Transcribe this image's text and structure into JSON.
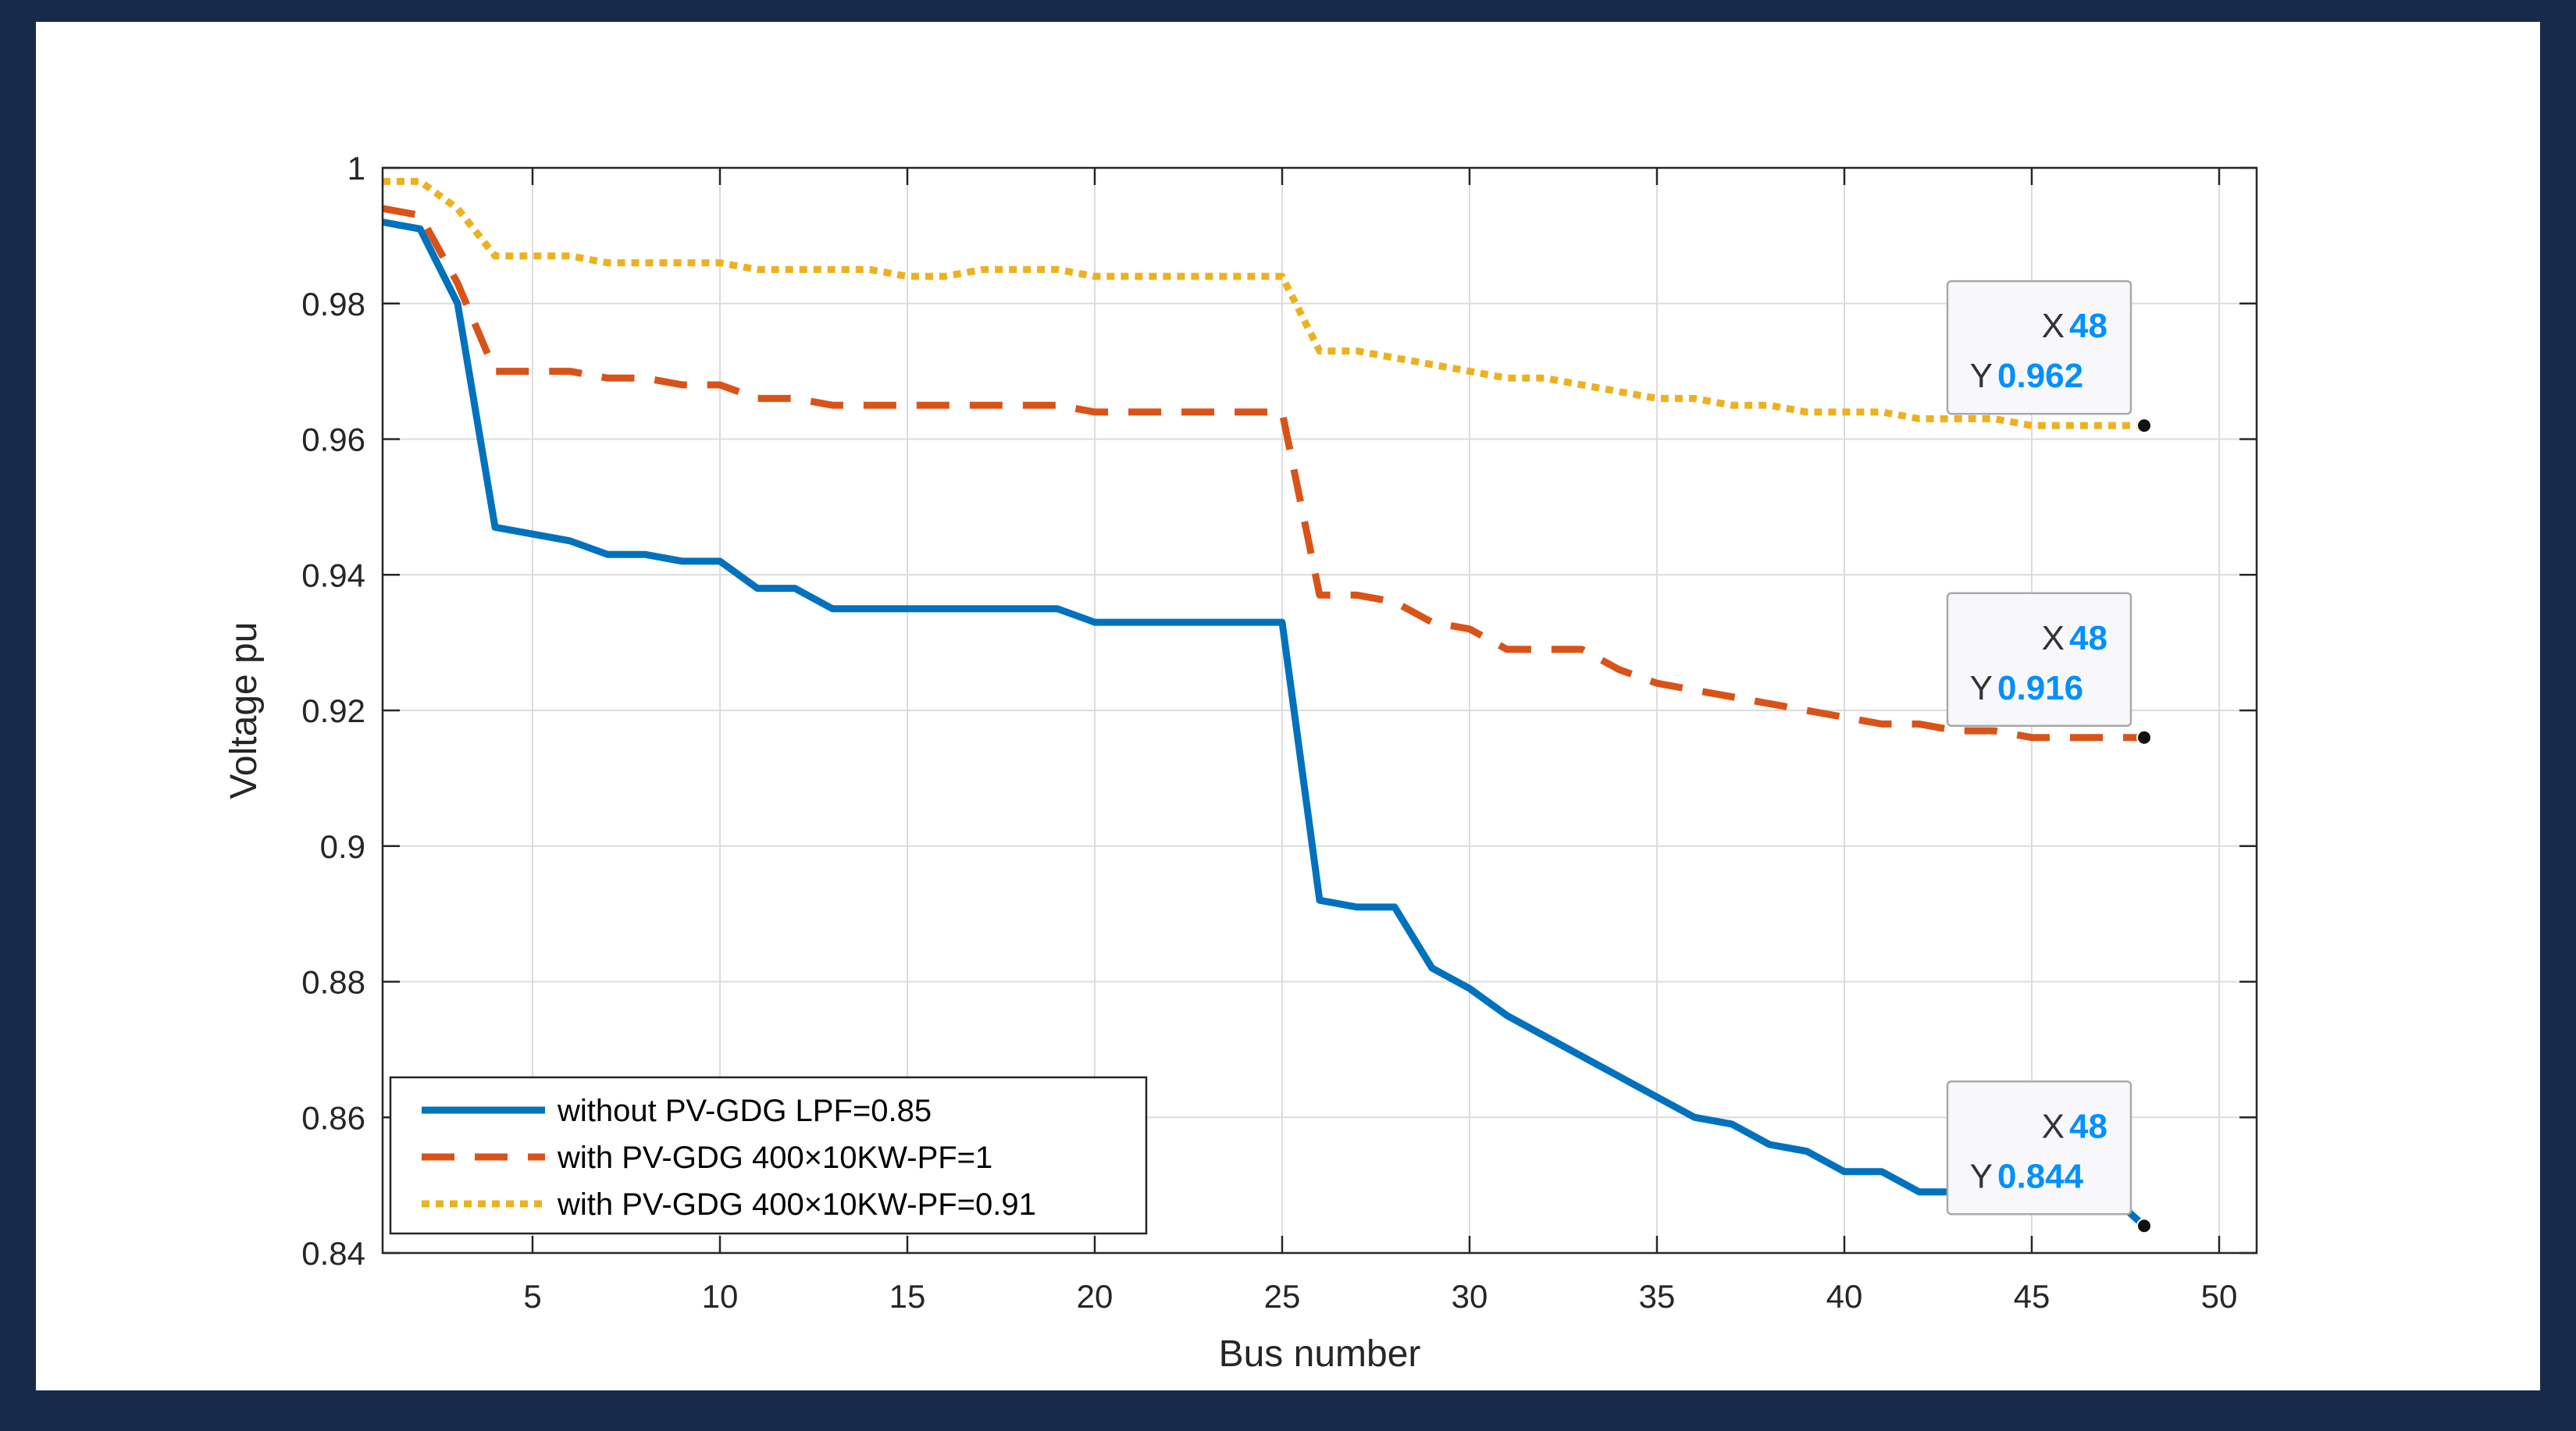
{
  "chart_data": {
    "type": "line",
    "xlabel": "Bus number",
    "ylabel": "Voltage pu",
    "xlim": [
      1,
      51
    ],
    "ylim": [
      0.84,
      1
    ],
    "xticks": [
      5,
      10,
      15,
      20,
      25,
      30,
      35,
      40,
      45,
      50
    ],
    "yticks": [
      0.84,
      0.86,
      0.88,
      0.9,
      0.92,
      0.94,
      0.96,
      0.98,
      1
    ],
    "ytick_labels": [
      "0.84",
      "0.86",
      "0.88",
      "0.9",
      "0.92",
      "0.94",
      "0.96",
      "0.98",
      "1"
    ],
    "grid": true,
    "legend_position": "bottom-left",
    "x": [
      1,
      2,
      3,
      4,
      5,
      6,
      7,
      8,
      9,
      10,
      11,
      12,
      13,
      14,
      15,
      16,
      17,
      18,
      19,
      20,
      21,
      22,
      23,
      24,
      25,
      26,
      27,
      28,
      29,
      30,
      31,
      32,
      33,
      34,
      35,
      36,
      37,
      38,
      39,
      40,
      41,
      42,
      43,
      44,
      45,
      46,
      47,
      48
    ],
    "series": [
      {
        "name": "without PV-GDG LPF=0.85",
        "color": "#0072bd",
        "style": "solid",
        "values": [
          0.992,
          0.991,
          0.98,
          0.947,
          0.946,
          0.945,
          0.943,
          0.943,
          0.942,
          0.942,
          0.938,
          0.938,
          0.935,
          0.935,
          0.935,
          0.935,
          0.935,
          0.935,
          0.935,
          0.933,
          0.933,
          0.933,
          0.933,
          0.933,
          0.933,
          0.892,
          0.891,
          0.891,
          0.882,
          0.879,
          0.875,
          0.872,
          0.869,
          0.866,
          0.863,
          0.86,
          0.859,
          0.856,
          0.855,
          0.852,
          0.852,
          0.849,
          0.849,
          0.849,
          0.849,
          0.849,
          0.849,
          0.844
        ]
      },
      {
        "name": "with PV-GDG 400×10KW-PF=1",
        "color": "#d95319",
        "style": "dashed",
        "values": [
          0.994,
          0.993,
          0.983,
          0.97,
          0.97,
          0.97,
          0.969,
          0.969,
          0.968,
          0.968,
          0.966,
          0.966,
          0.965,
          0.965,
          0.965,
          0.965,
          0.965,
          0.965,
          0.965,
          0.964,
          0.964,
          0.964,
          0.964,
          0.964,
          0.964,
          0.937,
          0.937,
          0.936,
          0.933,
          0.932,
          0.929,
          0.929,
          0.929,
          0.926,
          0.924,
          0.923,
          0.922,
          0.921,
          0.92,
          0.919,
          0.918,
          0.918,
          0.917,
          0.917,
          0.916,
          0.916,
          0.916,
          0.916
        ]
      },
      {
        "name": "with PV-GDG 400×10KW-PF=0.91",
        "color": "#edb120",
        "style": "dotted",
        "values": [
          0.998,
          0.998,
          0.994,
          0.987,
          0.987,
          0.987,
          0.986,
          0.986,
          0.986,
          0.986,
          0.985,
          0.985,
          0.985,
          0.985,
          0.984,
          0.984,
          0.985,
          0.985,
          0.985,
          0.984,
          0.984,
          0.984,
          0.984,
          0.984,
          0.984,
          0.973,
          0.973,
          0.972,
          0.971,
          0.97,
          0.969,
          0.969,
          0.968,
          0.967,
          0.966,
          0.966,
          0.965,
          0.965,
          0.964,
          0.964,
          0.964,
          0.963,
          0.963,
          0.963,
          0.962,
          0.962,
          0.962,
          0.962
        ]
      }
    ],
    "datatips": [
      {
        "x_key": "X",
        "x_value": "48",
        "y_key": "Y",
        "y_value": "0.962",
        "x": 48,
        "y": 0.962
      },
      {
        "x_key": "X",
        "x_value": "48",
        "y_key": "Y",
        "y_value": "0.916",
        "x": 48,
        "y": 0.916
      },
      {
        "x_key": "X",
        "x_value": "48",
        "y_key": "Y",
        "y_value": "0.844",
        "x": 48,
        "y": 0.844
      }
    ],
    "datatip_value_color": "#0090ff",
    "frame_color": "#172a4a"
  }
}
